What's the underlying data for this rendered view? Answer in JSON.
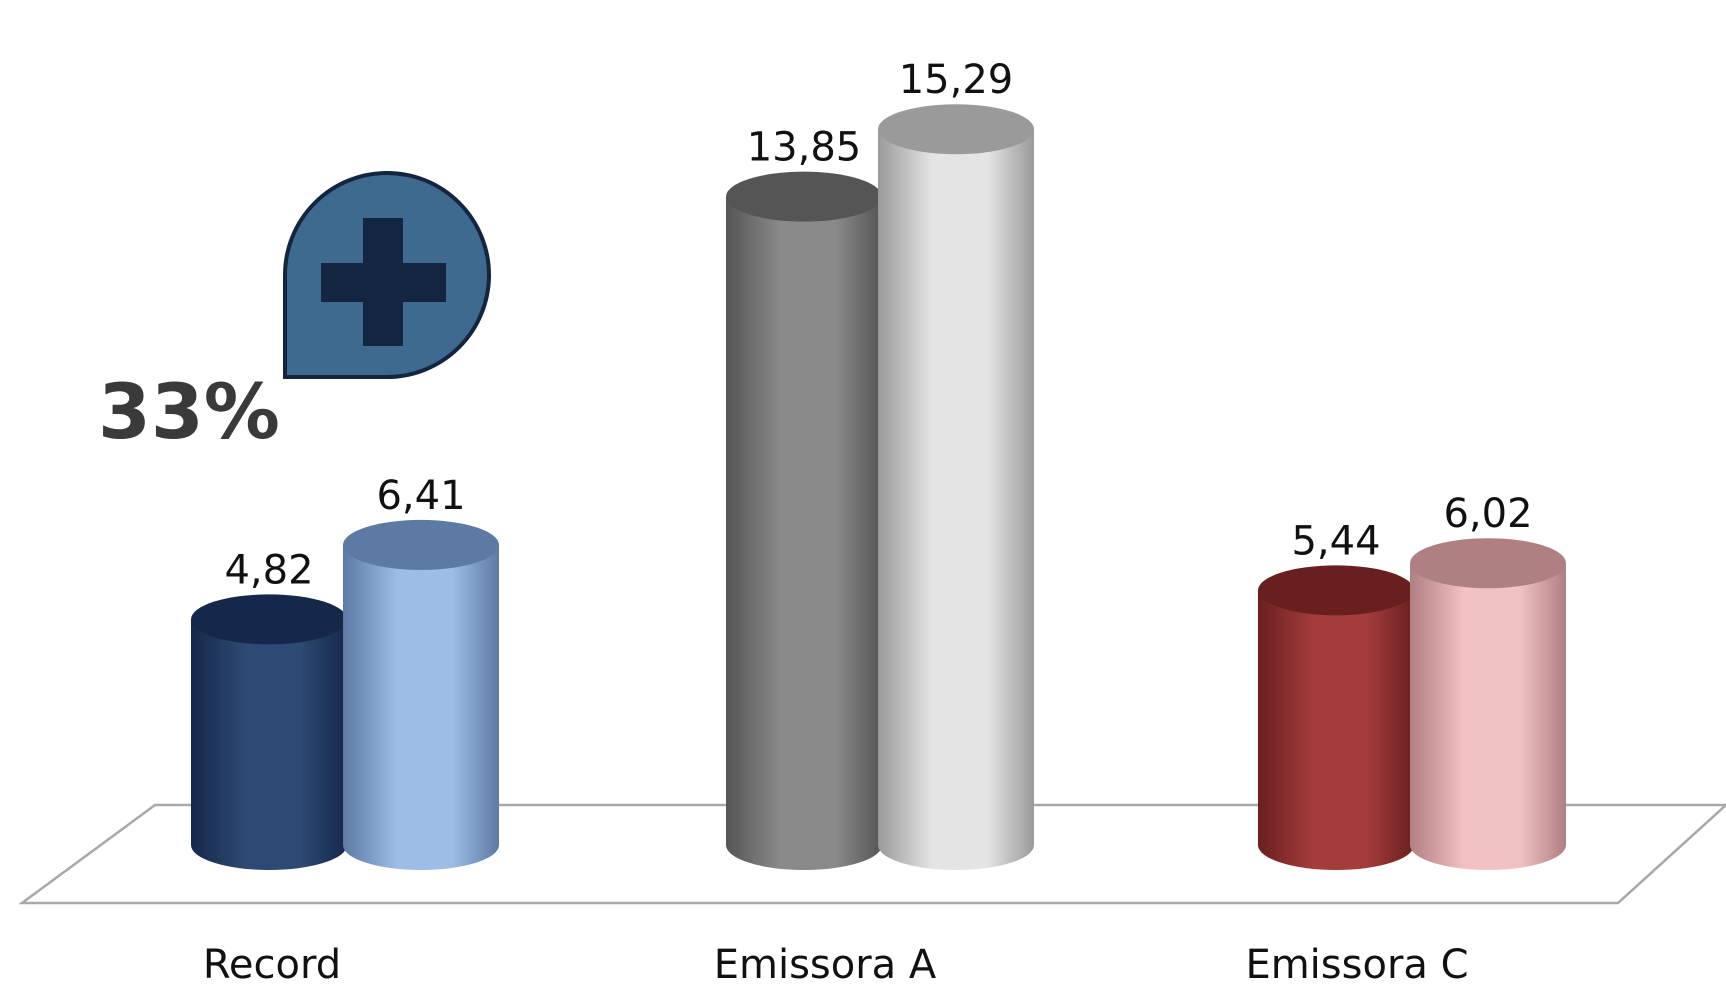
{
  "chart_data": {
    "type": "bar",
    "style": "3d-cylinder",
    "categories": [
      "Record",
      "Emissora A",
      "Emissora C"
    ],
    "groups": [
      {
        "category": "Record",
        "bars": [
          {
            "value": 4.82,
            "label": "4,82",
            "color": "#2c4a73",
            "dark": "#16284a"
          },
          {
            "value": 6.41,
            "label": "6,41",
            "color": "#9dbde6",
            "dark": "#5c7aa3"
          }
        ]
      },
      {
        "category": "Emissora A",
        "bars": [
          {
            "value": 13.85,
            "label": "13,85",
            "color": "#8a8a8a",
            "dark": "#555555"
          },
          {
            "value": 15.29,
            "label": "15,29",
            "color": "#e4e4e4",
            "dark": "#9a9a9a"
          }
        ]
      },
      {
        "category": "Emissora C",
        "bars": [
          {
            "value": 5.44,
            "label": "5,44",
            "color": "#a33c3a",
            "dark": "#6a1f1f"
          },
          {
            "value": 6.02,
            "label": "6,02",
            "color": "#f2c1c3",
            "dark": "#b07f81"
          }
        ]
      }
    ],
    "ylim": [
      0,
      16
    ],
    "grid": false,
    "legend": "none"
  },
  "callout": {
    "text": "33%",
    "icon": "plus-icon",
    "bubble_color": "#3f6a90",
    "bubble_border": "#13253f",
    "plus_color": "#13253f"
  }
}
